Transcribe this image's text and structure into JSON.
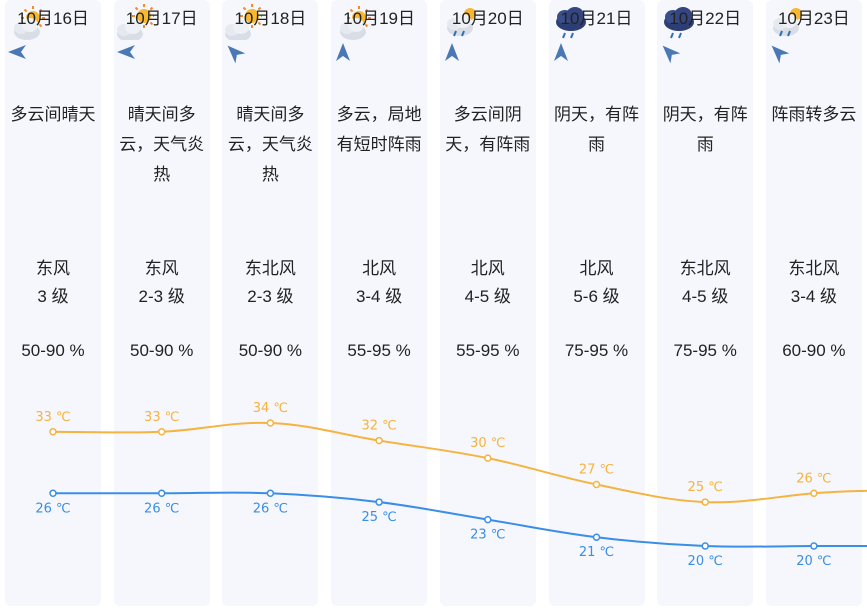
{
  "days": [
    {
      "date": "10月16日",
      "icon": "partly-cloudy-icon",
      "desc": [
        "多云间晴天"
      ],
      "wind_icon": "wind-arrow-icon",
      "wind_rot": 0,
      "wind_dir": "东风",
      "wind_level": "3 级",
      "humidity": "50-90 %",
      "high": "33 ℃",
      "low": "26 ℃"
    },
    {
      "date": "10月17日",
      "icon": "sunny-cloudy-icon",
      "desc": [
        "晴天间多",
        "云，天气炎",
        "热"
      ],
      "wind_icon": "wind-arrow-icon",
      "wind_rot": 0,
      "wind_dir": "东风",
      "wind_level": "2-3 级",
      "humidity": "50-90 %",
      "high": "33 ℃",
      "low": "26 ℃"
    },
    {
      "date": "10月18日",
      "icon": "sunny-cloudy-icon",
      "desc": [
        "晴天间多",
        "云，天气炎",
        "热"
      ],
      "wind_icon": "wind-arrow-icon",
      "wind_rot": 45,
      "wind_dir": "东北风",
      "wind_level": "2-3 级",
      "humidity": "50-90 %",
      "high": "34 ℃",
      "low": "26 ℃"
    },
    {
      "date": "10月19日",
      "icon": "partly-cloudy-icon",
      "desc": [
        "多云，局地",
        "有短时阵雨"
      ],
      "wind_icon": "wind-arrow-icon",
      "wind_rot": 90,
      "wind_dir": "北风",
      "wind_level": "3-4 级",
      "humidity": "55-95 %",
      "high": "32 ℃",
      "low": "25 ℃"
    },
    {
      "date": "10月20日",
      "icon": "cloudy-rain-icon",
      "desc": [
        "多云间阴",
        "天，有阵雨"
      ],
      "wind_icon": "wind-arrow-icon",
      "wind_rot": 90,
      "wind_dir": "北风",
      "wind_level": "4-5 级",
      "humidity": "55-95 %",
      "high": "30 ℃",
      "low": "23 ℃"
    },
    {
      "date": "10月21日",
      "icon": "overcast-rain-icon",
      "desc": [
        "阴天，有阵",
        "雨"
      ],
      "wind_icon": "wind-arrow-icon",
      "wind_rot": 90,
      "wind_dir": "北风",
      "wind_level": "5-6 级",
      "humidity": "75-95 %",
      "high": "27 ℃",
      "low": "21 ℃"
    },
    {
      "date": "10月22日",
      "icon": "overcast-rain-icon",
      "desc": [
        "阴天，有阵",
        "雨"
      ],
      "wind_icon": "wind-arrow-icon",
      "wind_rot": 45,
      "wind_dir": "东北风",
      "wind_level": "4-5 级",
      "humidity": "75-95 %",
      "high": "25 ℃",
      "low": "20 ℃"
    },
    {
      "date": "10月23日",
      "icon": "cloudy-rain-icon",
      "desc": [
        "阵雨转多云"
      ],
      "wind_icon": "wind-arrow-icon",
      "wind_rot": 45,
      "wind_dir": "东北风",
      "wind_level": "3-4 级",
      "humidity": "60-90 %",
      "high": "26 ℃",
      "low": "20 ℃"
    }
  ],
  "chart_data": {
    "type": "line",
    "categories": [
      "10月16日",
      "10月17日",
      "10月18日",
      "10月19日",
      "10月20日",
      "10月21日",
      "10月22日",
      "10月23日"
    ],
    "series": [
      {
        "values": [
          33,
          33,
          34,
          32,
          30,
          27,
          25,
          26
        ],
        "color": "#f5b340"
      },
      {
        "values": [
          26,
          26,
          26,
          25,
          23,
          21,
          20,
          20
        ],
        "color": "#3a8ee6"
      }
    ],
    "unit": "℃"
  },
  "colors": {
    "high_line": "#f5b340",
    "low_line": "#3a8ee6",
    "column_bg": "#f5f7fc",
    "arrow": "#4a78b5"
  }
}
